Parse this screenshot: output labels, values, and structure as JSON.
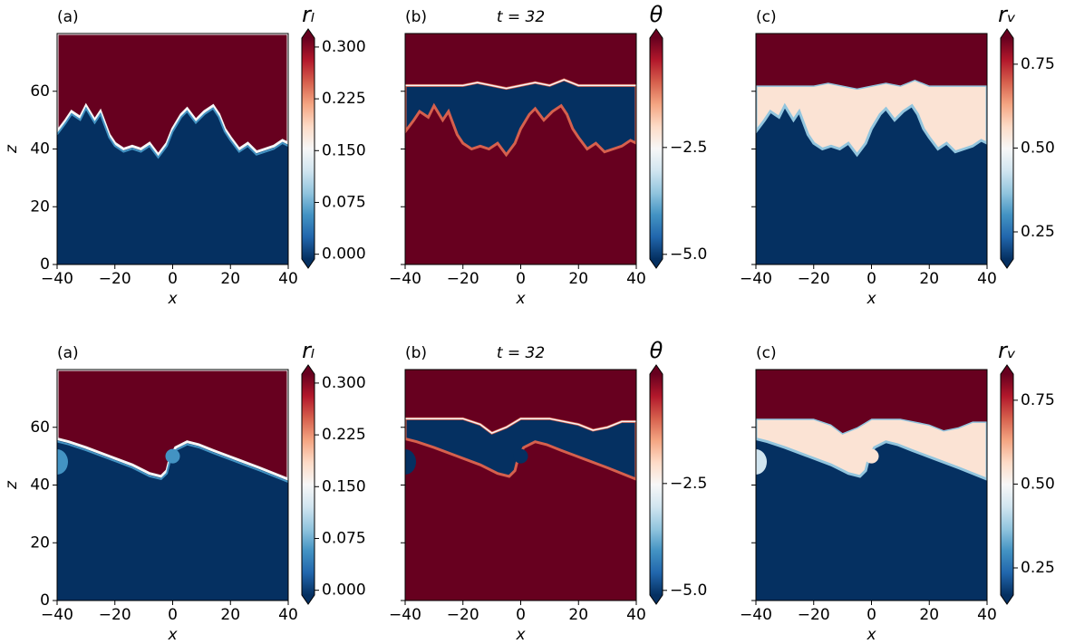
{
  "chart_data": [
    {
      "type": "heatmap",
      "panel_label": "(a)",
      "xlabel": "x",
      "ylabel": "z",
      "xlim": [
        -40,
        40
      ],
      "ylim": [
        0,
        80
      ],
      "xticks": [
        {
          "value": -40,
          "label": "−40"
        },
        {
          "value": -20,
          "label": "−20"
        },
        0,
        20,
        40
      ],
      "yticks": [
        0,
        20,
        40,
        60
      ],
      "show_yticklabels": true,
      "colorbar": {
        "label": "rₗ",
        "colormap": "RdBu_r",
        "clim": [
          -0.007,
          0.313
        ],
        "ticks": [
          {
            "value": 0,
            "label": "0.000"
          },
          {
            "value": 0.075,
            "label": "0.075"
          },
          {
            "value": 0.15,
            "label": "0.150"
          },
          {
            "value": 0.225,
            "label": "0.225"
          },
          {
            "value": 0.3,
            "label": "0.300"
          }
        ]
      }
    },
    {
      "type": "heatmap",
      "panel_label": "(b)",
      "title": "t = 32",
      "xlabel": "x",
      "xlim": [
        -40,
        40
      ],
      "ylim": [
        0,
        80
      ],
      "xticks": [
        {
          "value": -40,
          "label": "−40"
        },
        {
          "value": -20,
          "label": "−20"
        },
        0,
        20,
        40
      ],
      "yticks": [
        0,
        20,
        40,
        60
      ],
      "show_yticklabels": false,
      "colorbar": {
        "label": "θ",
        "colormap": "RdBu_r",
        "clim": [
          -5.11,
          0.06
        ],
        "ticks": [
          {
            "value": -5,
            "label": "−5.0"
          },
          {
            "value": -2.5,
            "label": "−2.5"
          }
        ]
      }
    },
    {
      "type": "heatmap",
      "panel_label": "(c)",
      "xlabel": "x",
      "xlim": [
        -40,
        40
      ],
      "ylim": [
        0,
        80
      ],
      "xticks": [
        {
          "value": -40,
          "label": "−40"
        },
        {
          "value": -20,
          "label": "−20"
        },
        0,
        20,
        40
      ],
      "yticks": [
        0,
        20,
        40,
        60
      ],
      "show_yticklabels": false,
      "colorbar": {
        "label": "rᵥ",
        "colormap": "RdBu_r",
        "clim": [
          0.169,
          0.828
        ],
        "ticks": [
          {
            "value": 0.25,
            "label": "0.25"
          },
          {
            "value": 0.5,
            "label": "0.50"
          },
          {
            "value": 0.75,
            "label": "0.75"
          }
        ]
      }
    },
    {
      "type": "heatmap",
      "panel_label": "(a)",
      "xlabel": "x",
      "ylabel": "z",
      "xlim": [
        -40,
        40
      ],
      "ylim": [
        0,
        80
      ],
      "xticks": [
        {
          "value": -40,
          "label": "−40"
        },
        {
          "value": -20,
          "label": "−20"
        },
        0,
        20,
        40
      ],
      "yticks": [
        0,
        20,
        40,
        60
      ],
      "show_yticklabels": true,
      "colorbar": {
        "label": "rₗ",
        "colormap": "RdBu_r",
        "clim": [
          -0.007,
          0.313
        ],
        "ticks": [
          {
            "value": 0,
            "label": "0.000"
          },
          {
            "value": 0.075,
            "label": "0.075"
          },
          {
            "value": 0.15,
            "label": "0.150"
          },
          {
            "value": 0.225,
            "label": "0.225"
          },
          {
            "value": 0.3,
            "label": "0.300"
          }
        ]
      }
    },
    {
      "type": "heatmap",
      "panel_label": "(b)",
      "title": "t = 32",
      "xlabel": "x",
      "xlim": [
        -40,
        40
      ],
      "ylim": [
        0,
        80
      ],
      "xticks": [
        {
          "value": -40,
          "label": "−40"
        },
        {
          "value": -20,
          "label": "−20"
        },
        0,
        20,
        40
      ],
      "yticks": [
        0,
        20,
        40,
        60
      ],
      "show_yticklabels": false,
      "colorbar": {
        "label": "θ",
        "colormap": "RdBu_r",
        "clim": [
          -5.11,
          0.06
        ],
        "ticks": [
          {
            "value": -5,
            "label": "−5.0"
          },
          {
            "value": -2.5,
            "label": "−2.5"
          }
        ]
      }
    },
    {
      "type": "heatmap",
      "panel_label": "(c)",
      "xlabel": "x",
      "xlim": [
        -40,
        40
      ],
      "ylim": [
        0,
        80
      ],
      "xticks": [
        {
          "value": -40,
          "label": "−40"
        },
        {
          "value": -20,
          "label": "−20"
        },
        0,
        20,
        40
      ],
      "yticks": [
        0,
        20,
        40,
        60
      ],
      "show_yticklabels": false,
      "colorbar": {
        "label": "rᵥ",
        "colormap": "RdBu_r",
        "clim": [
          0.169,
          0.828
        ],
        "ticks": [
          {
            "value": 0.25,
            "label": "0.25"
          },
          {
            "value": 0.5,
            "label": "0.50"
          },
          {
            "value": 0.75,
            "label": "0.75"
          }
        ]
      }
    }
  ]
}
